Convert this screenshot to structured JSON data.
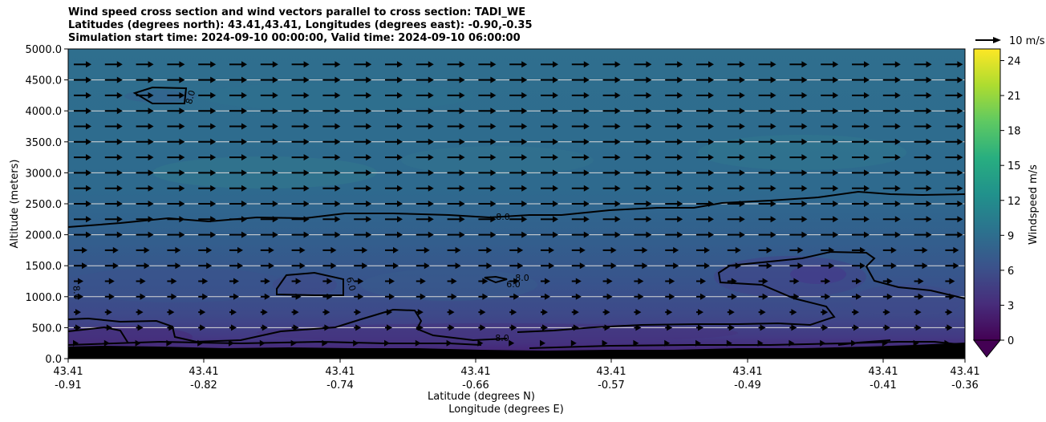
{
  "title": {
    "line1": "Wind speed cross section and wind vectors parallel to cross section: TADI_WE",
    "line2": "Latitudes (degrees north): 43.41,43.41, Longitudes (degrees east): -0.90,-0.35",
    "line3": "Simulation start time: 2024-09-10 00:00:00, Valid time: 2024-09-10 06:00:00"
  },
  "chart_data": {
    "type": "contourf",
    "ylabel": "Altitude (meters)",
    "xlabel": "Latitude (degrees N)",
    "xlabel2": "Longitude (degrees E)",
    "ylim": [
      0,
      5000
    ],
    "yticks": [
      "0.0",
      "500.0",
      "1000.0",
      "1500.0",
      "2000.0",
      "2500.0",
      "3000.0",
      "3500.0",
      "4000.0",
      "4500.0",
      "5000.0"
    ],
    "xticks": [
      {
        "lat": "43.41",
        "lon": "-0.91"
      },
      {
        "lat": "43.41",
        "lon": "-0.82"
      },
      {
        "lat": "43.41",
        "lon": "-0.74"
      },
      {
        "lat": "43.41",
        "lon": "-0.66"
      },
      {
        "lat": "43.41",
        "lon": "-0.57"
      },
      {
        "lat": "43.41",
        "lon": "-0.49"
      },
      {
        "lat": "43.41",
        "lon": "-0.41"
      },
      {
        "lat": "43.41",
        "lon": "-0.36"
      }
    ],
    "colorbar": {
      "label": "Windspeed m/s",
      "range": [
        0,
        25
      ],
      "ticks": [
        "0",
        "3",
        "6",
        "9",
        "12",
        "15",
        "18",
        "21",
        "24"
      ],
      "colormap": "viridis",
      "extend": "min"
    },
    "quiver_key": "10 m/s",
    "contour_levels": [
      6.0,
      8.0
    ],
    "contour_labels": [
      "8.0",
      "8.0",
      "8.0",
      "6.0",
      "6.0",
      "8.0",
      "8.0",
      "6.0",
      "6.0",
      "6.0",
      "6.0"
    ],
    "grid": "horizontal"
  }
}
